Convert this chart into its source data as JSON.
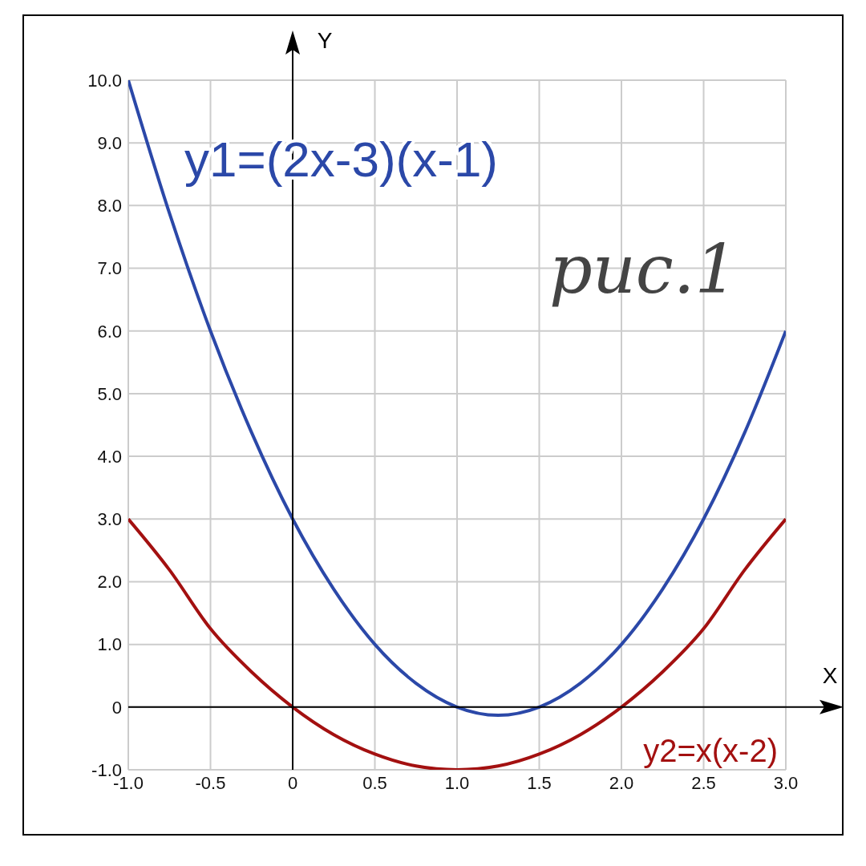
{
  "chart_data": {
    "type": "line",
    "xlabel": "X",
    "ylabel": "Y",
    "x": [
      -1,
      -0.75,
      -0.5,
      -0.25,
      0,
      0.25,
      0.5,
      0.75,
      1,
      1.25,
      1.5,
      1.75,
      2,
      2.25,
      2.5,
      2.75,
      3
    ],
    "series": [
      {
        "name": "y1=(2x-3)(x-1)",
        "color": "#2b48a8",
        "values": [
          10,
          7.88,
          6,
          4.38,
          3,
          1.88,
          1,
          0.38,
          0,
          -0.13,
          0,
          0.38,
          1,
          1.88,
          3,
          4.38,
          6
        ]
      },
      {
        "name": "y2=x(x-2)",
        "color": "#a31010",
        "values": [
          3,
          2.19,
          1.25,
          0.56,
          0,
          -0.44,
          -0.75,
          -0.94,
          -1,
          -0.94,
          -0.75,
          -0.44,
          0,
          0.56,
          1.25,
          2.19,
          3
        ]
      }
    ],
    "xlim": [
      -1,
      3
    ],
    "ylim": [
      -1,
      10
    ],
    "xticks": [
      {
        "value": -1,
        "label": "-1.0"
      },
      {
        "value": -0.5,
        "label": "-0.5"
      },
      {
        "value": 0,
        "label": "0"
      },
      {
        "value": 0.5,
        "label": "0.5"
      },
      {
        "value": 1,
        "label": "1.0"
      },
      {
        "value": 1.5,
        "label": "1.5"
      },
      {
        "value": 2,
        "label": "2.0"
      },
      {
        "value": 2.5,
        "label": "2.5"
      },
      {
        "value": 3,
        "label": "3.0"
      }
    ],
    "yticks": [
      {
        "value": -1,
        "label": "-1.0"
      },
      {
        "value": 0,
        "label": "0"
      },
      {
        "value": 1,
        "label": "1.0"
      },
      {
        "value": 2,
        "label": "2.0"
      },
      {
        "value": 3,
        "label": "3.0"
      },
      {
        "value": 4,
        "label": "4.0"
      },
      {
        "value": 5,
        "label": "5.0"
      },
      {
        "value": 6,
        "label": "6.0"
      },
      {
        "value": 7,
        "label": "7.0"
      },
      {
        "value": 8,
        "label": "8.0"
      },
      {
        "value": 9,
        "label": "9.0"
      },
      {
        "value": 10,
        "label": "10.0"
      }
    ],
    "grid": true,
    "marker": "none",
    "line_style": "solid",
    "annotations": [
      "рис.1"
    ]
  }
}
